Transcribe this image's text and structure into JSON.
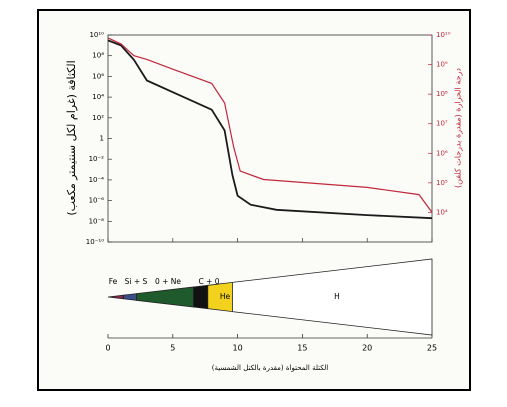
{
  "chart_data": {
    "type": "line",
    "ylabel": "الكثافة (غرام لكل سنتيمتر مكعب)",
    "y2label": "درجة الحرارة (مقدرة بدرجات كلفن)",
    "xlabel": "الكتلة المحتواة (مقدرة بالكتل الشمسية)",
    "xlim": [
      0,
      25
    ],
    "xticks": [
      0,
      5,
      10,
      15,
      20,
      25
    ],
    "log_scale": true,
    "ylim": [
      1e-10,
      10000000000.0
    ],
    "yticks": [
      {
        "value": 10000000000.0,
        "label": "10¹⁰"
      },
      {
        "value": 100000000.0,
        "label": "10⁸"
      },
      {
        "value": 1000000.0,
        "label": "10⁶"
      },
      {
        "value": 10000.0,
        "label": "10⁴"
      },
      {
        "value": 100,
        "label": "10²"
      },
      1,
      {
        "value": 0.01,
        "label": "10⁻²"
      },
      {
        "value": 0.0001,
        "label": "10⁻⁴"
      },
      {
        "value": 1e-06,
        "label": "10⁻⁶"
      },
      {
        "value": 1e-08,
        "label": "10⁻⁸"
      },
      {
        "value": 1e-10,
        "label": "10⁻¹⁰"
      }
    ],
    "y2lim": [
      1000.0,
      10000000000.0
    ],
    "y2ticks": [
      {
        "value": 10000000000.0,
        "label": "10¹⁰"
      },
      {
        "value": 1000000000.0,
        "label": "10⁹"
      },
      {
        "value": 100000000.0,
        "label": "10⁸"
      },
      {
        "value": 10000000.0,
        "label": "10⁷"
      },
      {
        "value": 1000000.0,
        "label": "10⁶"
      },
      {
        "value": 100000.0,
        "label": "10⁵"
      },
      {
        "value": 10000.0,
        "label": "10⁴"
      }
    ],
    "series": [
      {
        "color": "#1a1a1a",
        "axis": "y",
        "x": [
          0,
          1,
          2,
          3,
          5,
          8,
          9,
          9.6,
          10,
          11,
          13,
          20,
          25
        ],
        "values": [
          3000000000.0,
          1000000000.0,
          40000000.0,
          400000.0,
          30000.0,
          600,
          6,
          0.0003,
          3e-06,
          4e-07,
          1.3e-07,
          4e-08,
          2e-08
        ]
      },
      {
        "color": "#c0283c",
        "axis": "y2",
        "x": [
          0,
          1,
          2,
          3,
          5,
          8,
          9,
          9.7,
          10.2,
          12,
          20,
          24,
          25
        ],
        "values": [
          8000000000.0,
          5000000000.0,
          2000000000.0,
          1500000000.0,
          700000000.0,
          230000000.0,
          50000000.0,
          1600000.0,
          250000.0,
          130000.0,
          70000.0,
          40000.0,
          10000.0
        ]
      }
    ]
  },
  "star_layers": [
    {
      "label": "Fe",
      "start": 0,
      "end": 1.2,
      "color": "#8b2a4a"
    },
    {
      "label": "Si + S",
      "start": 1.2,
      "end": 2.2,
      "color": "#3a4f8a"
    },
    {
      "label": "0 + Ne",
      "start": 2.2,
      "end": 6.6,
      "color": "#1f5a2c"
    },
    {
      "label": "C + 0",
      "start": 6.6,
      "end": 7.7,
      "color": "#111111"
    },
    {
      "label": "He",
      "start": 7.7,
      "end": 9.6,
      "color": "#f2d21c"
    },
    {
      "label": "H",
      "start": 9.6,
      "end": 25,
      "color": "#ffffff"
    }
  ]
}
